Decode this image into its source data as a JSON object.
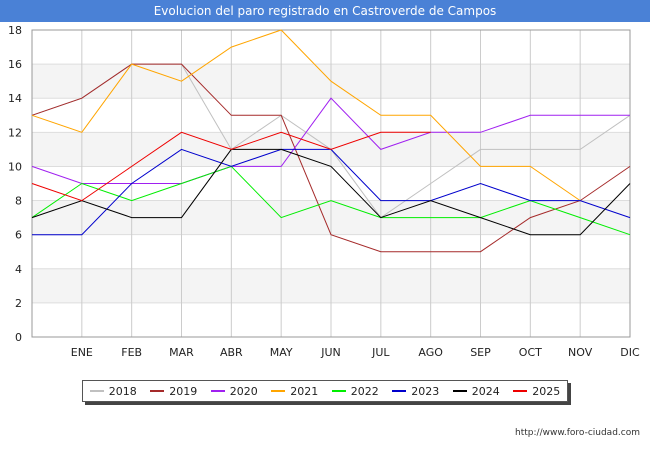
{
  "chart_data": {
    "type": "line",
    "title": "Evolucion del paro registrado en Castroverde de Campos",
    "categories": [
      "",
      "ENE",
      "FEB",
      "MAR",
      "ABR",
      "MAY",
      "JUN",
      "JUL",
      "AGO",
      "SEP",
      "OCT",
      "NOV",
      "DIC"
    ],
    "xlabel": "",
    "ylabel": "",
    "ylim": [
      0,
      18
    ],
    "yticks": [
      "0",
      "2",
      "4",
      "6",
      "8",
      "10",
      "12",
      "14",
      "16",
      "18"
    ],
    "grid": true,
    "legend_position": "bottom",
    "series": [
      {
        "name": "2018",
        "color": "#c0c0c0",
        "values": [
          13,
          14,
          16,
          16,
          11,
          13,
          11,
          7,
          9,
          11,
          11,
          11,
          13
        ]
      },
      {
        "name": "2019",
        "color": "#a52a2a",
        "values": [
          13,
          14,
          16,
          16,
          13,
          13,
          6,
          5,
          5,
          5,
          7,
          8,
          10
        ]
      },
      {
        "name": "2020",
        "color": "#a020f0",
        "values": [
          10,
          9,
          9,
          9,
          10,
          10,
          14,
          11,
          12,
          12,
          13,
          13,
          13
        ]
      },
      {
        "name": "2021",
        "color": "#ffa500",
        "values": [
          13,
          12,
          16,
          15,
          17,
          18,
          15,
          13,
          13,
          10,
          10,
          8,
          null
        ]
      },
      {
        "name": "2022",
        "color": "#00ee00",
        "values": [
          7,
          9,
          8,
          9,
          10,
          7,
          8,
          7,
          7,
          7,
          8,
          7,
          6
        ]
      },
      {
        "name": "2023",
        "color": "#0000cc",
        "values": [
          6,
          6,
          9,
          11,
          10,
          11,
          11,
          8,
          8,
          9,
          8,
          8,
          7
        ]
      },
      {
        "name": "2024",
        "color": "#000000",
        "values": [
          7,
          8,
          7,
          7,
          11,
          11,
          10,
          7,
          8,
          7,
          6,
          6,
          9
        ]
      },
      {
        "name": "2025",
        "color": "#ee0000",
        "values": [
          9,
          8,
          10,
          12,
          11,
          12,
          11,
          12,
          12,
          null,
          null,
          null,
          null
        ]
      }
    ]
  },
  "watermark": "http://www.foro-ciudad.com"
}
